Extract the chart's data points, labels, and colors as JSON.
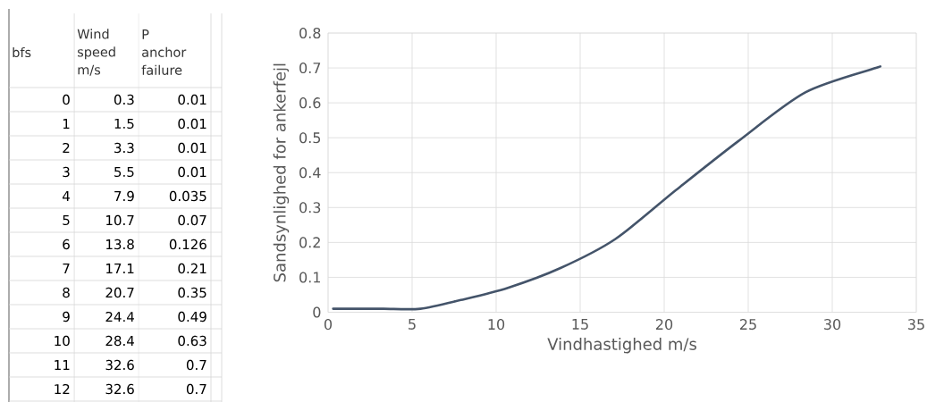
{
  "chart_data": {
    "type": "line",
    "xlabel": "Vindhastighed m/s",
    "ylabel": "Sandsynlighed for ankerfejl",
    "x": [
      0.3,
      1.5,
      3.3,
      5.5,
      7.9,
      10.7,
      13.8,
      17.1,
      20.7,
      24.4,
      28.4,
      32.6,
      32.6
    ],
    "series": [
      {
        "color": "#44546a",
        "values": [
          0.01,
          0.01,
          0.01,
          0.01,
          0.035,
          0.07,
          0.126,
          0.21,
          0.35,
          0.49,
          0.63,
          0.7,
          0.7
        ]
      }
    ],
    "annotations": [
      "bfs",
      "Wind speed m/s",
      "P anchor failure",
      "0",
      "0.3",
      "0.01",
      "1",
      "1.5",
      "0.01",
      "2",
      "3.3",
      "0.01",
      "3",
      "5.5",
      "0.01",
      "4",
      "7.9",
      "0.035",
      "5",
      "10.7",
      "0.07",
      "6",
      "13.8",
      "0.126",
      "7",
      "17.1",
      "0.21",
      "8",
      "20.7",
      "0.35",
      "9",
      "24.4",
      "0.49",
      "10",
      "28.4",
      "0.63",
      "11",
      "32.6",
      "0.7",
      "12",
      "32.6",
      "0.7"
    ],
    "xlim": [
      0,
      35
    ],
    "xticks": [
      0,
      5,
      10,
      15,
      20,
      25,
      30,
      35
    ],
    "ylim": [
      0,
      0.8
    ],
    "yticks": [
      0,
      0.1,
      0.2,
      0.3,
      0.4,
      0.5,
      0.6,
      0.7,
      0.8
    ],
    "grid": true,
    "marker": "none",
    "line_style": "solid"
  }
}
